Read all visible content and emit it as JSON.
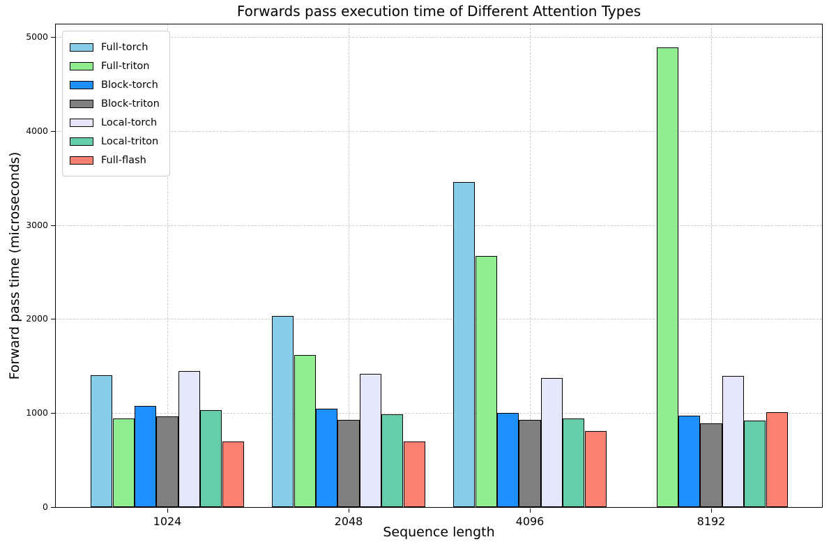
{
  "chart_data": {
    "type": "bar",
    "title": "Forwards pass execution time of Different Attention Types",
    "xlabel": "Sequence length",
    "ylabel": "Forward pass time (microseconds)",
    "categories": [
      "1024",
      "2048",
      "4096",
      "8192"
    ],
    "series": [
      {
        "name": "Full-torch",
        "color": "#87CEEB",
        "values": [
          1405,
          2035,
          3460,
          0
        ]
      },
      {
        "name": "Full-triton",
        "color": "#90EE90",
        "values": [
          940,
          1620,
          2670,
          4890
        ]
      },
      {
        "name": "Block-torch",
        "color": "#1E90FF",
        "values": [
          1075,
          1045,
          1000,
          975
        ]
      },
      {
        "name": "Block-triton",
        "color": "#808080",
        "values": [
          965,
          930,
          925,
          890
        ]
      },
      {
        "name": "Local-torch",
        "color": "#E6E6FA",
        "values": [
          1445,
          1420,
          1370,
          1395
        ]
      },
      {
        "name": "Local-triton",
        "color": "#66CDAA",
        "values": [
          1030,
          990,
          945,
          920
        ]
      },
      {
        "name": "Full-flash",
        "color": "#FA8072",
        "values": [
          700,
          695,
          810,
          1010
        ]
      }
    ],
    "y_ticks": [
      0,
      1000,
      2000,
      3000,
      4000,
      5000
    ],
    "ylim": [
      0,
      5135
    ],
    "grid": true,
    "grid_style": "dashed",
    "grid_color": "#c9c9c9",
    "bar_edge_color": "#000000",
    "legend_position": "upper left"
  }
}
